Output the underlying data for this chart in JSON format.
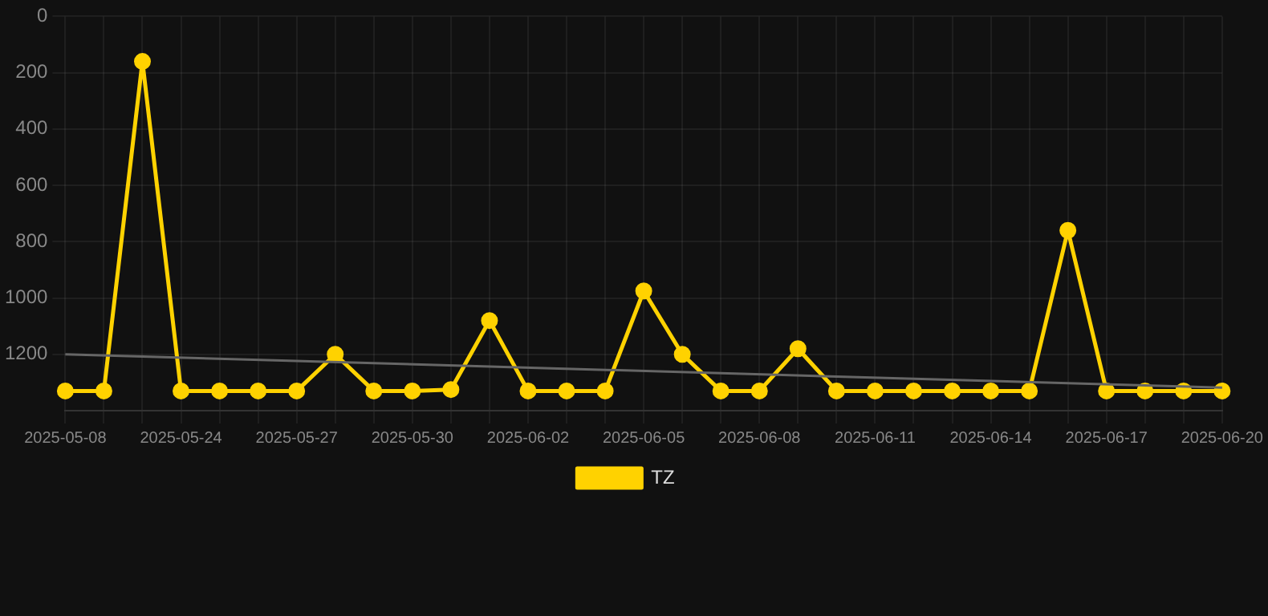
{
  "chart_data": {
    "type": "line",
    "categories": [
      "2025-05-08",
      null,
      null,
      "2025-05-24",
      null,
      null,
      "2025-05-27",
      null,
      null,
      "2025-05-30",
      null,
      null,
      "2025-06-02",
      null,
      null,
      "2025-06-05",
      null,
      null,
      "2025-06-08",
      null,
      null,
      "2025-06-11",
      null,
      null,
      "2025-06-14",
      null,
      null,
      "2025-06-17",
      null,
      null,
      "2025-06-20"
    ],
    "series": [
      {
        "name": "TZ",
        "color": "#ffd200",
        "marker": "circle",
        "values": [
          1330,
          1330,
          160,
          1330,
          1330,
          1330,
          1330,
          1200,
          1330,
          1330,
          1325,
          1080,
          1330,
          1330,
          1330,
          975,
          1200,
          1330,
          1330,
          1180,
          1330,
          1330,
          1330,
          1330,
          1330,
          1330,
          760,
          1330,
          1330,
          1330,
          1330
        ]
      },
      {
        "type": "line",
        "color": "#666666",
        "marker": "none",
        "values": [
          1200,
          null,
          null,
          null,
          null,
          null,
          null,
          null,
          null,
          null,
          null,
          null,
          null,
          null,
          null,
          null,
          null,
          null,
          null,
          null,
          null,
          null,
          null,
          null,
          null,
          null,
          null,
          null,
          null,
          null,
          1318
        ]
      }
    ],
    "ylim": [
      1400,
      0
    ],
    "yticks": [
      0,
      200,
      400,
      600,
      800,
      1000,
      1200
    ],
    "grid": true,
    "legend": "bottom",
    "line_style": "solid"
  }
}
